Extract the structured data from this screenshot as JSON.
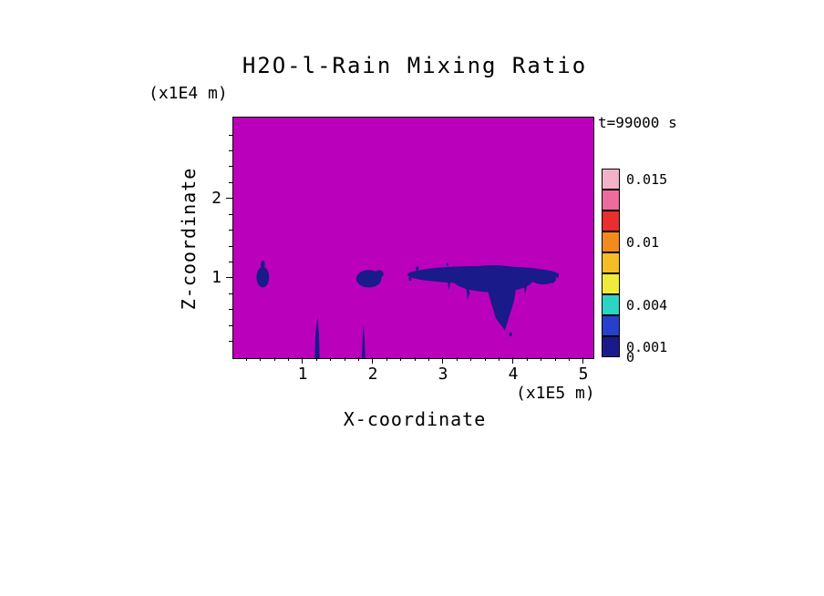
{
  "window": {
    "background": "#FFFFFF"
  },
  "chart_data": {
    "type": "heatmap",
    "title": "H2O-l-Rain Mixing Ratio",
    "time_annotation": "t=99000 s",
    "x_axis": {
      "label": "X-coordinate",
      "unit": "(x1E5 m)",
      "range": [
        0,
        5.13
      ],
      "ticks": [
        1,
        2,
        3,
        4,
        5
      ],
      "minor_tick_step": 0.2
    },
    "z_axis": {
      "label": "Z-coordinate",
      "unit": "(x1E4 m)",
      "range": [
        0,
        3.03
      ],
      "ticks": [
        1,
        2
      ],
      "minor_tick_step": 0.2
    },
    "field": {
      "background_color": "#BB00BB",
      "feature_color": "#1A1A8A",
      "features": [
        {
          "shape": "ellipse",
          "cx": 0.42,
          "cz": 1.02,
          "rx": 0.09,
          "rz": 0.13
        },
        {
          "shape": "ellipse",
          "cx": 0.42,
          "cz": 1.18,
          "rx": 0.03,
          "rz": 0.05
        },
        {
          "shape": "ellipse",
          "cx": 1.93,
          "cz": 1.0,
          "rx": 0.18,
          "rz": 0.11
        },
        {
          "shape": "ellipse",
          "cx": 2.08,
          "cz": 1.06,
          "rx": 0.06,
          "rz": 0.05
        },
        {
          "shape": "ellipse",
          "cx": 3.56,
          "cz": 1.05,
          "rx": 1.08,
          "rz": 0.11
        },
        {
          "shape": "ellipse",
          "cx": 3.7,
          "cz": 1.0,
          "rx": 0.58,
          "rz": 0.17
        },
        {
          "shape": "ellipse",
          "cx": 4.42,
          "cz": 1.0,
          "rx": 0.18,
          "rz": 0.07
        },
        {
          "shape": "polygon",
          "points": [
            [
              3.58,
              1.05
            ],
            [
              4.06,
              1.05
            ],
            [
              4.0,
              0.72
            ],
            [
              3.87,
              0.35
            ],
            [
              3.74,
              0.5
            ],
            [
              3.64,
              0.8
            ]
          ]
        },
        {
          "shape": "polygon",
          "points": [
            [
              1.16,
              0.0
            ],
            [
              1.23,
              0.0
            ],
            [
              1.22,
              0.3
            ],
            [
              1.2,
              0.52
            ],
            [
              1.17,
              0.3
            ]
          ]
        },
        {
          "shape": "polygon",
          "points": [
            [
              1.83,
              0.0
            ],
            [
              1.88,
              0.0
            ],
            [
              1.87,
              0.25
            ],
            [
              1.855,
              0.42
            ],
            [
              1.84,
              0.25
            ]
          ]
        },
        {
          "shape": "polygon",
          "points": [
            [
              3.3,
              1.0
            ],
            [
              3.38,
              1.0
            ],
            [
              3.34,
              0.72
            ]
          ]
        },
        {
          "shape": "polygon",
          "points": [
            [
              4.12,
              1.0
            ],
            [
              4.2,
              1.0
            ],
            [
              4.16,
              0.8
            ]
          ]
        },
        {
          "shape": "polygon",
          "points": [
            [
              3.05,
              1.0
            ],
            [
              3.1,
              1.0
            ],
            [
              3.07,
              0.85
            ]
          ]
        },
        {
          "shape": "dot",
          "cx": 2.52,
          "cz": 1.0,
          "r": 0.02
        },
        {
          "shape": "dot",
          "cx": 2.62,
          "cz": 1.13,
          "r": 0.02
        },
        {
          "shape": "dot",
          "cx": 4.55,
          "cz": 0.97,
          "r": 0.02
        },
        {
          "shape": "dot",
          "cx": 4.62,
          "cz": 1.03,
          "r": 0.015
        },
        {
          "shape": "dot",
          "cx": 3.05,
          "cz": 1.18,
          "r": 0.015
        },
        {
          "shape": "dot",
          "cx": 3.35,
          "cz": 0.82,
          "r": 0.02
        },
        {
          "shape": "dot",
          "cx": 3.95,
          "cz": 0.3,
          "r": 0.02
        }
      ]
    },
    "colorbar": {
      "levels": [
        0,
        0.001,
        0.004,
        0.01,
        0.015
      ],
      "bottom_label": "0",
      "segments": [
        {
          "color": "#F2B3C6",
          "label": "0.015"
        },
        {
          "color": "#EE6B9E",
          "label": ""
        },
        {
          "color": "#E92E2E",
          "label": ""
        },
        {
          "color": "#F28A1E",
          "label": "0.01"
        },
        {
          "color": "#F6BE26",
          "label": ""
        },
        {
          "color": "#F0EA3C",
          "label": ""
        },
        {
          "color": "#2DD3C5",
          "label": "0.004"
        },
        {
          "color": "#2740CC",
          "label": ""
        },
        {
          "color": "#1A1A8A",
          "label": "0.001"
        }
      ]
    }
  }
}
